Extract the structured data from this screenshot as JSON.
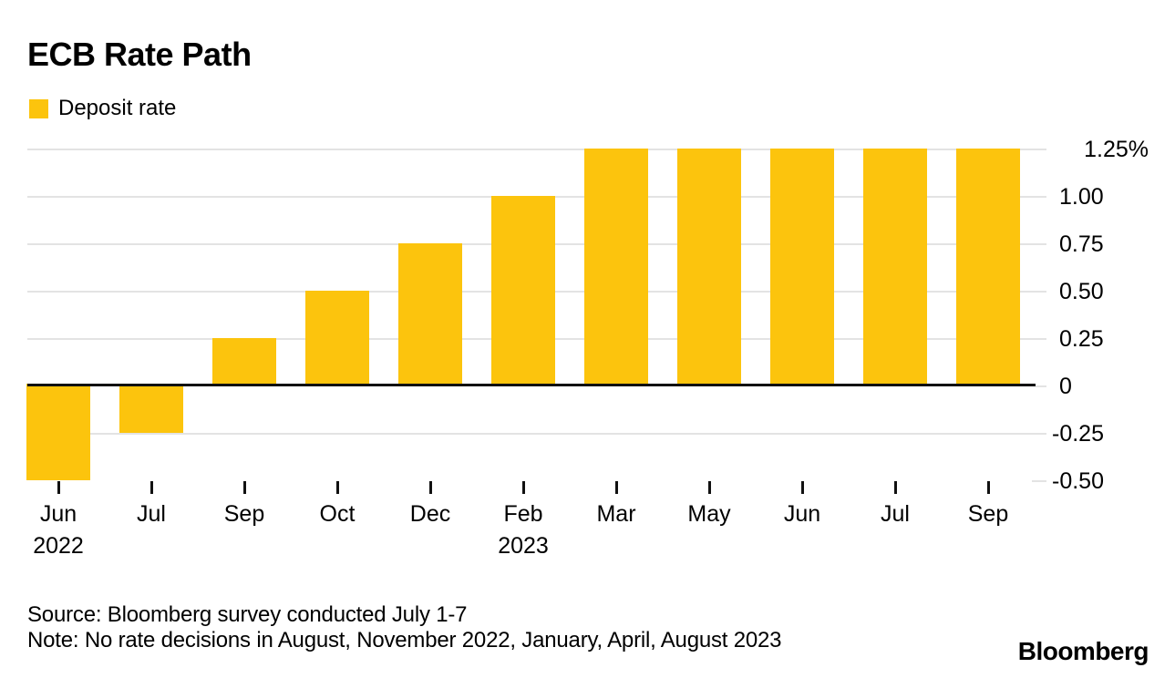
{
  "chart_data": {
    "type": "bar",
    "title": "ECB Rate Path",
    "series": [
      {
        "name": "Deposit rate",
        "color": "#FCC40D"
      }
    ],
    "categories": [
      {
        "month": "Jun",
        "year": "2022"
      },
      {
        "month": "Jul"
      },
      {
        "month": "Sep"
      },
      {
        "month": "Oct"
      },
      {
        "month": "Dec"
      },
      {
        "month": "Feb",
        "year": "2023"
      },
      {
        "month": "Mar"
      },
      {
        "month": "May"
      },
      {
        "month": "Jun"
      },
      {
        "month": "Jul"
      },
      {
        "month": "Sep"
      }
    ],
    "values": [
      -0.5,
      -0.25,
      0.25,
      0.5,
      0.75,
      1.0,
      1.25,
      1.25,
      1.25,
      1.25,
      1.25
    ],
    "y_axis": {
      "unit": "%",
      "ylim": [
        -0.5,
        1.25
      ],
      "ticks": [
        {
          "label": "1.25%",
          "value": 1.25
        },
        {
          "label": "1.00",
          "value": 1.0
        },
        {
          "label": "0.75",
          "value": 0.75
        },
        {
          "label": "0.50",
          "value": 0.5
        },
        {
          "label": "0.25",
          "value": 0.25
        },
        {
          "label": "0",
          "value": 0
        },
        {
          "label": "-0.25",
          "value": -0.25
        },
        {
          "label": "-0.50",
          "value": -0.5
        }
      ]
    },
    "grid": "horizontal",
    "legend_position": "top-left"
  },
  "footer": {
    "source": "Source: Bloomberg survey conducted July 1-7",
    "note": "Note: No rate decisions in August, November 2022, January, April, August 2023",
    "logo": "Bloomberg"
  },
  "colors": {
    "bar": "#FCC40D",
    "grid": "#E3E3E3",
    "zero_line": "#111111",
    "tick": "#111111",
    "text": "#000000",
    "background": "#FFFFFF"
  }
}
